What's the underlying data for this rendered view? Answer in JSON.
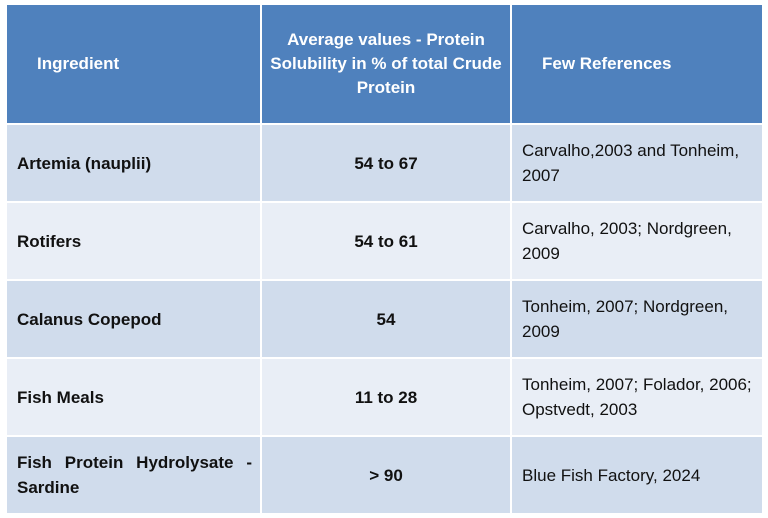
{
  "table": {
    "headers": [
      "Ingredient",
      "Average values - Protein Solubility in % of total Crude Protein",
      "Few References"
    ],
    "rows": [
      {
        "ingredient": "Artemia (nauplii)",
        "value": "54 to 67",
        "references": "Carvalho,2003 and Tonheim, 2007"
      },
      {
        "ingredient": "Rotifers",
        "value": "54 to 61",
        "references": "Carvalho, 2003; Nordgreen, 2009"
      },
      {
        "ingredient": "Calanus Copepod",
        "value": "54",
        "references": "Tonheim, 2007; Nordgreen, 2009"
      },
      {
        "ingredient": "Fish Meals",
        "value": "11 to 28",
        "references": "Tonheim, 2007; Folador, 2006; Opstvedt, 2003"
      },
      {
        "ingredient": "Fish Protein Hydrolysate - Sardine",
        "value": "> 90",
        "references": "Blue Fish Factory, 2024"
      }
    ]
  },
  "colors": {
    "header_bg": "#4f81bd",
    "row_dark": "#d0dcec",
    "row_light": "#e9eef6"
  }
}
